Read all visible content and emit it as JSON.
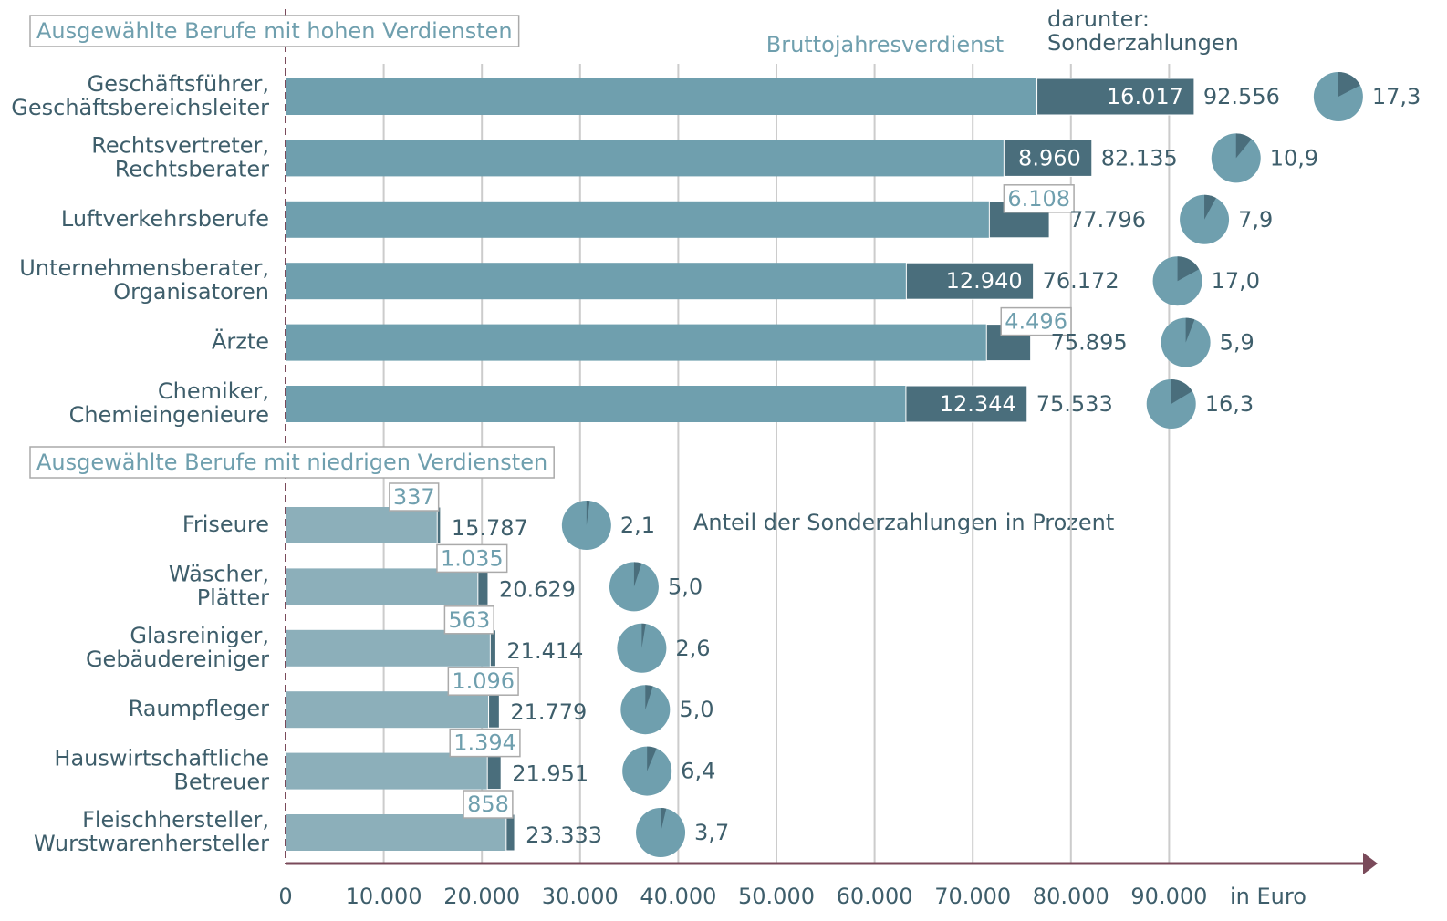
{
  "chart_data": {
    "type": "bar",
    "groups": [
      {
        "title": "Ausgewählte Berufe mit hohen Verdiensten",
        "color": "#6f9fae",
        "categories": [
          [
            "Geschäftsführer,",
            "Geschäftsbereichsleiter"
          ],
          [
            "Rechtsvertreter,",
            "Rechtsberater"
          ],
          [
            "Luftverkehrsberufe"
          ],
          [
            "Unternehmensberater,",
            "Organisatoren"
          ],
          [
            "Ärzte"
          ],
          [
            "Chemiker,",
            "Chemieingenieure"
          ]
        ],
        "total": [
          92556,
          82135,
          77796,
          76172,
          75895,
          75533
        ],
        "total_labels": [
          "92.556",
          "82.135",
          "77.796",
          "76.172",
          "75.895",
          "75.533"
        ],
        "special": [
          16017,
          8960,
          6108,
          12940,
          4496,
          12344
        ],
        "special_labels": [
          "16.017",
          "8.960",
          "6.108",
          "12.940",
          "4.496",
          "12.344"
        ],
        "share": [
          17.3,
          10.9,
          7.9,
          17.0,
          5.9,
          16.3
        ],
        "share_labels": [
          "17,3",
          "10,9",
          "7,9",
          "17,0",
          "5,9",
          "16,3"
        ]
      },
      {
        "title": "Ausgewählte Berufe mit niedrigen Verdiensten",
        "color": "#8cafba",
        "categories": [
          [
            "Friseure"
          ],
          [
            "Wäscher,",
            "Plätter"
          ],
          [
            "Glasreiniger,",
            "Gebäudereiniger"
          ],
          [
            "Raumpfleger"
          ],
          [
            "Hauswirtschaftliche",
            "Betreuer"
          ],
          [
            "Fleischhersteller,",
            "Wurstwarenhersteller"
          ]
        ],
        "total": [
          15787,
          20629,
          21414,
          21779,
          21951,
          23333
        ],
        "total_labels": [
          "15.787",
          "20.629",
          "21.414",
          "21.779",
          "21.951",
          "23.333"
        ],
        "special": [
          337,
          1035,
          563,
          1096,
          1394,
          858
        ],
        "special_labels": [
          "337",
          "1.035",
          "563",
          "1.096",
          "1.394",
          "858"
        ],
        "share": [
          2.1,
          5.0,
          2.6,
          5.0,
          6.4,
          3.7
        ],
        "share_labels": [
          "2,1",
          "5,0",
          "2,6",
          "5,0",
          "6,4",
          "3,7"
        ]
      }
    ],
    "legend": {
      "total": "Bruttojahresverdienst",
      "special": [
        "darunter:",
        "Sonderzahlungen"
      ],
      "share": "Anteil der Sonderzahlungen in Prozent"
    },
    "special_color": "#4a6e7c",
    "pie_color": "#6f9fae",
    "axis_color": "#7a4a5a",
    "xlim": [
      0,
      100000
    ],
    "xticks": [
      0,
      {
        "value": 10000,
        "label": "10.000"
      },
      {
        "value": 20000,
        "label": "20.000"
      },
      {
        "value": 30000,
        "label": "30.000"
      },
      {
        "value": 40000,
        "label": "40.000"
      },
      {
        "value": 50000,
        "label": "50.000"
      },
      {
        "value": 60000,
        "label": "60.000"
      },
      {
        "value": 70000,
        "label": "70.000"
      },
      {
        "value": 80000,
        "label": "80.000"
      },
      {
        "value": 90000,
        "label": "90.000"
      }
    ],
    "xlabel": "in Euro",
    "grid": true
  }
}
